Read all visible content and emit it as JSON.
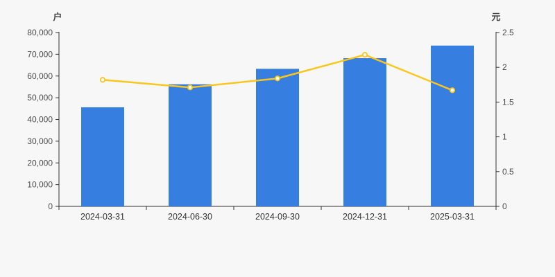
{
  "page": {
    "background": "#f7f7f7"
  },
  "chart_data": {
    "type": "bar+line dual-axis",
    "categories": [
      "2024-03-31",
      "2024-06-30",
      "2024-09-30",
      "2024-12-31",
      "2025-03-31"
    ],
    "series": [
      {
        "name": "bar-series",
        "type": "bar",
        "axis": "left",
        "color": "#377ee1",
        "values": [
          45600,
          56200,
          63300,
          68200,
          74000
        ]
      },
      {
        "name": "line-series",
        "type": "line",
        "axis": "right",
        "color": "#fbc61c",
        "marker": "hollow-circle",
        "values": [
          1.82,
          1.71,
          1.84,
          2.18,
          1.67
        ]
      }
    ],
    "left_axis": {
      "unit": "户",
      "min": 0,
      "max": 80000,
      "step": 10000,
      "tick_labels": [
        "0",
        "10,000",
        "20,000",
        "30,000",
        "40,000",
        "50,000",
        "60,000",
        "70,000",
        "80,000"
      ]
    },
    "right_axis": {
      "unit": "元",
      "min": 0,
      "max": 2.5,
      "step": 0.5,
      "tick_labels": [
        "0",
        "0.5",
        "1",
        "1.5",
        "2",
        "2.5"
      ]
    },
    "grid": "off",
    "legend": "none",
    "axis_color": "#333333",
    "tick_text_color": "#4a4a4a"
  }
}
